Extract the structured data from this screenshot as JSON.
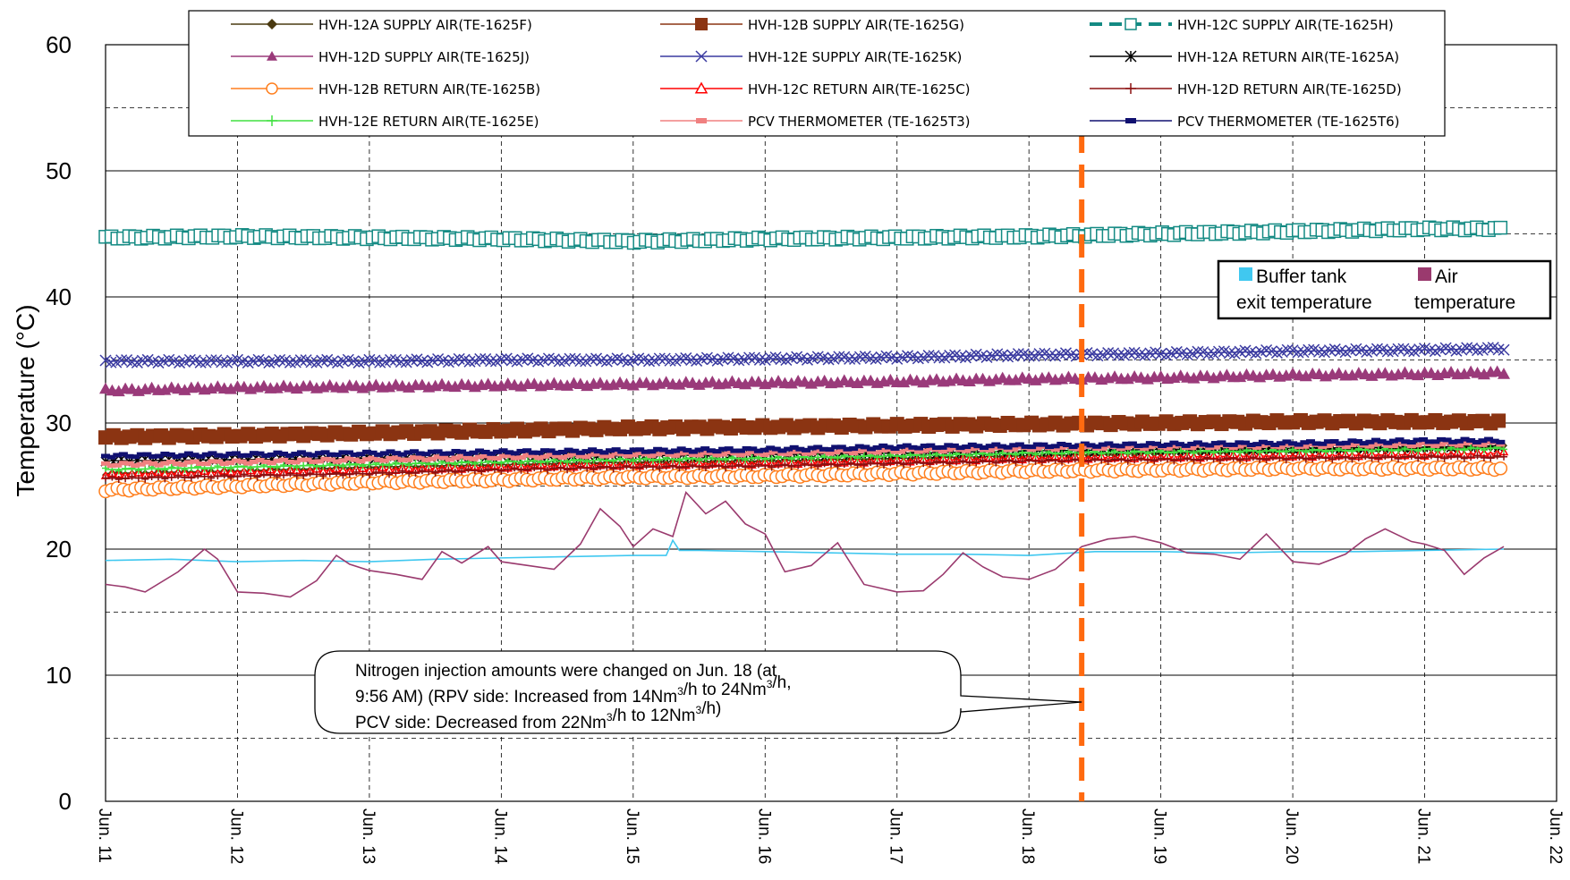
{
  "chart_data": {
    "type": "line",
    "ylabel": "Temperature (°C)",
    "ylim": [
      0,
      60
    ],
    "y_ticks": [
      "0",
      "10",
      "20",
      "30",
      "40",
      "50",
      "60"
    ],
    "x_ticks": [
      "Jun. 11",
      "Jun. 12",
      "Jun. 13",
      "Jun. 14",
      "Jun. 15",
      "Jun. 16",
      "Jun. 17",
      "Jun. 18",
      "Jun. 19",
      "Jun. 20",
      "Jun. 21",
      "Jun. 22"
    ],
    "x_range_days": [
      11,
      22
    ],
    "grid": true,
    "series": [
      {
        "name": "HVH-12A SUPPLY AIR(TE-1625F)",
        "color": "#4a3a10",
        "marker": "diamond",
        "x": [
          11,
          12,
          13,
          14,
          15,
          16,
          17,
          18,
          19,
          20,
          21,
          21.6
        ],
        "values": [
          26.0,
          26.2,
          26.5,
          26.7,
          26.9,
          27.0,
          27.2,
          27.4,
          27.6,
          27.8,
          28.0,
          28.1
        ]
      },
      {
        "name": "HVH-12B SUPPLY AIR(TE-1625G)",
        "color": "#8b3412",
        "marker": "square",
        "x": [
          11,
          12,
          13,
          14,
          15,
          16,
          17,
          18,
          19,
          20,
          21,
          21.6
        ],
        "values": [
          28.9,
          29.0,
          29.2,
          29.4,
          29.6,
          29.7,
          29.8,
          29.9,
          30.0,
          30.1,
          30.1,
          30.1
        ]
      },
      {
        "name": "HVH-12C SUPPLY AIR(TE-1625H)",
        "color": "#138a83",
        "marker": "open-square",
        "x": [
          11,
          12,
          13,
          14,
          15,
          16,
          17,
          18,
          19,
          20,
          21,
          21.6
        ],
        "values": [
          44.7,
          44.8,
          44.7,
          44.6,
          44.4,
          44.6,
          44.7,
          44.8,
          45.0,
          45.2,
          45.4,
          45.4
        ]
      },
      {
        "name": "HVH-12D SUPPLY AIR(TE-1625J)",
        "color": "#9a3a7a",
        "marker": "triangle",
        "x": [
          11,
          12,
          13,
          14,
          15,
          16,
          17,
          18,
          19,
          20,
          21,
          21.6
        ],
        "values": [
          32.6,
          32.8,
          32.9,
          33.0,
          33.1,
          33.2,
          33.3,
          33.5,
          33.6,
          33.8,
          33.9,
          34.0
        ]
      },
      {
        "name": "HVH-12E SUPPLY AIR(TE-1625K)",
        "color": "#3a3aa0",
        "marker": "x",
        "x": [
          11,
          12,
          13,
          14,
          15,
          16,
          17,
          18,
          19,
          20,
          21,
          21.6
        ],
        "values": [
          34.9,
          34.9,
          34.9,
          35.0,
          35.0,
          35.1,
          35.2,
          35.4,
          35.5,
          35.7,
          35.8,
          35.9
        ]
      },
      {
        "name": "HVH-12A RETURN AIR(TE-1625A)",
        "color": "#000000",
        "marker": "star",
        "x": [
          11,
          12,
          13,
          14,
          15,
          16,
          17,
          18,
          19,
          20,
          21,
          21.6
        ],
        "values": [
          27.0,
          27.1,
          27.2,
          27.3,
          27.4,
          27.5,
          27.6,
          27.8,
          27.9,
          28.0,
          28.1,
          28.2
        ]
      },
      {
        "name": "HVH-12B RETURN AIR(TE-1625B)",
        "color": "#ff7f1e",
        "marker": "circle",
        "x": [
          11,
          12,
          13,
          14,
          15,
          16,
          17,
          18,
          19,
          20,
          21,
          21.6
        ],
        "values": [
          24.7,
          25.0,
          25.3,
          25.5,
          25.7,
          25.8,
          26.0,
          26.2,
          26.3,
          26.4,
          26.4,
          26.4
        ]
      },
      {
        "name": "HVH-12C RETURN AIR(TE-1625C)",
        "color": "#ff0000",
        "marker": "open-triangle",
        "x": [
          11,
          12,
          13,
          14,
          15,
          16,
          17,
          18,
          19,
          20,
          21,
          21.6
        ],
        "values": [
          25.9,
          26.1,
          26.3,
          26.5,
          26.7,
          26.8,
          27.0,
          27.2,
          27.3,
          27.4,
          27.5,
          27.6
        ]
      },
      {
        "name": "HVH-12D RETURN AIR(TE-1625D)",
        "color": "#8b1010",
        "marker": "plus",
        "x": [
          11,
          12,
          13,
          14,
          15,
          16,
          17,
          18,
          19,
          20,
          21,
          21.6
        ],
        "values": [
          25.6,
          25.8,
          26.0,
          26.3,
          26.5,
          26.6,
          26.8,
          27.0,
          27.1,
          27.2,
          27.3,
          27.3
        ]
      },
      {
        "name": "HVH-12E RETURN AIR(TE-1625E)",
        "color": "#40e040",
        "marker": "plus",
        "x": [
          11,
          12,
          13,
          14,
          15,
          16,
          17,
          18,
          19,
          20,
          21,
          21.6
        ],
        "values": [
          26.3,
          26.5,
          26.7,
          26.9,
          27.1,
          27.2,
          27.4,
          27.6,
          27.7,
          27.8,
          27.9,
          28.0
        ]
      },
      {
        "name": "PCV THERMOMETER (TE-1625T3)",
        "color": "#f08080",
        "marker": "dash",
        "x": [
          11,
          12,
          13,
          14,
          15,
          16,
          17,
          18,
          19,
          20,
          21,
          21.6
        ],
        "values": [
          26.7,
          26.9,
          27.1,
          27.3,
          27.5,
          27.6,
          27.8,
          28.0,
          28.1,
          28.2,
          28.3,
          28.4
        ]
      },
      {
        "name": "PCV THERMOMETER (TE-1625T6)",
        "color": "#101070",
        "marker": "dash",
        "x": [
          11,
          12,
          13,
          14,
          15,
          16,
          17,
          18,
          19,
          20,
          21,
          21.6
        ],
        "values": [
          27.4,
          27.5,
          27.6,
          27.7,
          27.8,
          27.9,
          28.1,
          28.2,
          28.3,
          28.4,
          28.6,
          28.6
        ]
      },
      {
        "name": "Buffer tank exit temperature",
        "color": "#40c8f0",
        "marker": "none",
        "x": [
          11,
          11.5,
          12,
          12.5,
          13,
          13.5,
          14,
          14.5,
          15,
          15.25,
          15.3,
          15.35,
          15.5,
          16,
          16.5,
          17,
          17.5,
          18,
          18.5,
          19,
          19.5,
          20,
          20.5,
          21,
          21.6
        ],
        "values": [
          19.1,
          19.2,
          19.0,
          19.1,
          19.0,
          19.2,
          19.3,
          19.4,
          19.5,
          19.5,
          20.7,
          19.9,
          19.9,
          19.8,
          19.7,
          19.6,
          19.6,
          19.5,
          19.8,
          19.8,
          19.7,
          19.8,
          19.8,
          19.9,
          20.0
        ]
      },
      {
        "name": "Air temperature",
        "color": "#9a3a6e",
        "marker": "none",
        "x": [
          11,
          11.15,
          11.3,
          11.55,
          11.75,
          11.85,
          12.0,
          12.2,
          12.4,
          12.6,
          12.75,
          12.85,
          13.0,
          13.2,
          13.4,
          13.55,
          13.7,
          13.9,
          14.0,
          14.2,
          14.4,
          14.6,
          14.75,
          14.9,
          15.0,
          15.15,
          15.3,
          15.4,
          15.55,
          15.7,
          15.85,
          16.0,
          16.15,
          16.35,
          16.55,
          16.75,
          17.0,
          17.2,
          17.35,
          17.5,
          17.65,
          17.8,
          18.0,
          18.2,
          18.4,
          18.6,
          18.8,
          19.0,
          19.2,
          19.4,
          19.6,
          19.8,
          20.0,
          20.2,
          20.4,
          20.55,
          20.7,
          20.9,
          21.0,
          21.15,
          21.3,
          21.45,
          21.6
        ],
        "values": [
          17.2,
          17.0,
          16.6,
          18.2,
          20.0,
          19.2,
          16.6,
          16.5,
          16.2,
          17.5,
          19.5,
          18.8,
          18.3,
          18.0,
          17.6,
          19.8,
          18.9,
          20.2,
          19.0,
          18.7,
          18.4,
          20.4,
          23.2,
          21.8,
          20.2,
          21.6,
          21.0,
          24.5,
          22.8,
          23.8,
          22.0,
          21.2,
          18.2,
          18.7,
          20.5,
          17.2,
          16.6,
          16.7,
          18.0,
          19.7,
          18.6,
          17.8,
          17.6,
          18.4,
          20.2,
          20.8,
          21.0,
          20.5,
          19.7,
          19.6,
          19.2,
          21.2,
          19.0,
          18.8,
          19.6,
          20.8,
          21.6,
          20.6,
          20.4,
          19.9,
          18.0,
          19.3,
          20.2
        ]
      }
    ],
    "event_marker": {
      "x": 18.4,
      "color": "#ff6a10",
      "note_lines": [
        "Nitrogen injection amounts were changed on Jun. 18 (at",
        "9:56 AM) (RPV side: Increased from 14Nm",
        "3",
        "/h to 24Nm",
        "3",
        "/h,",
        "PCV side: Decreased from 22Nm",
        "3",
        "/h to 12Nm",
        "3",
        "/h)"
      ]
    },
    "box_legend": {
      "buffer_label_1": "Buffer tank",
      "buffer_label_2": "exit temperature",
      "air_label_1": "Air",
      "air_label_2": "temperature"
    }
  }
}
